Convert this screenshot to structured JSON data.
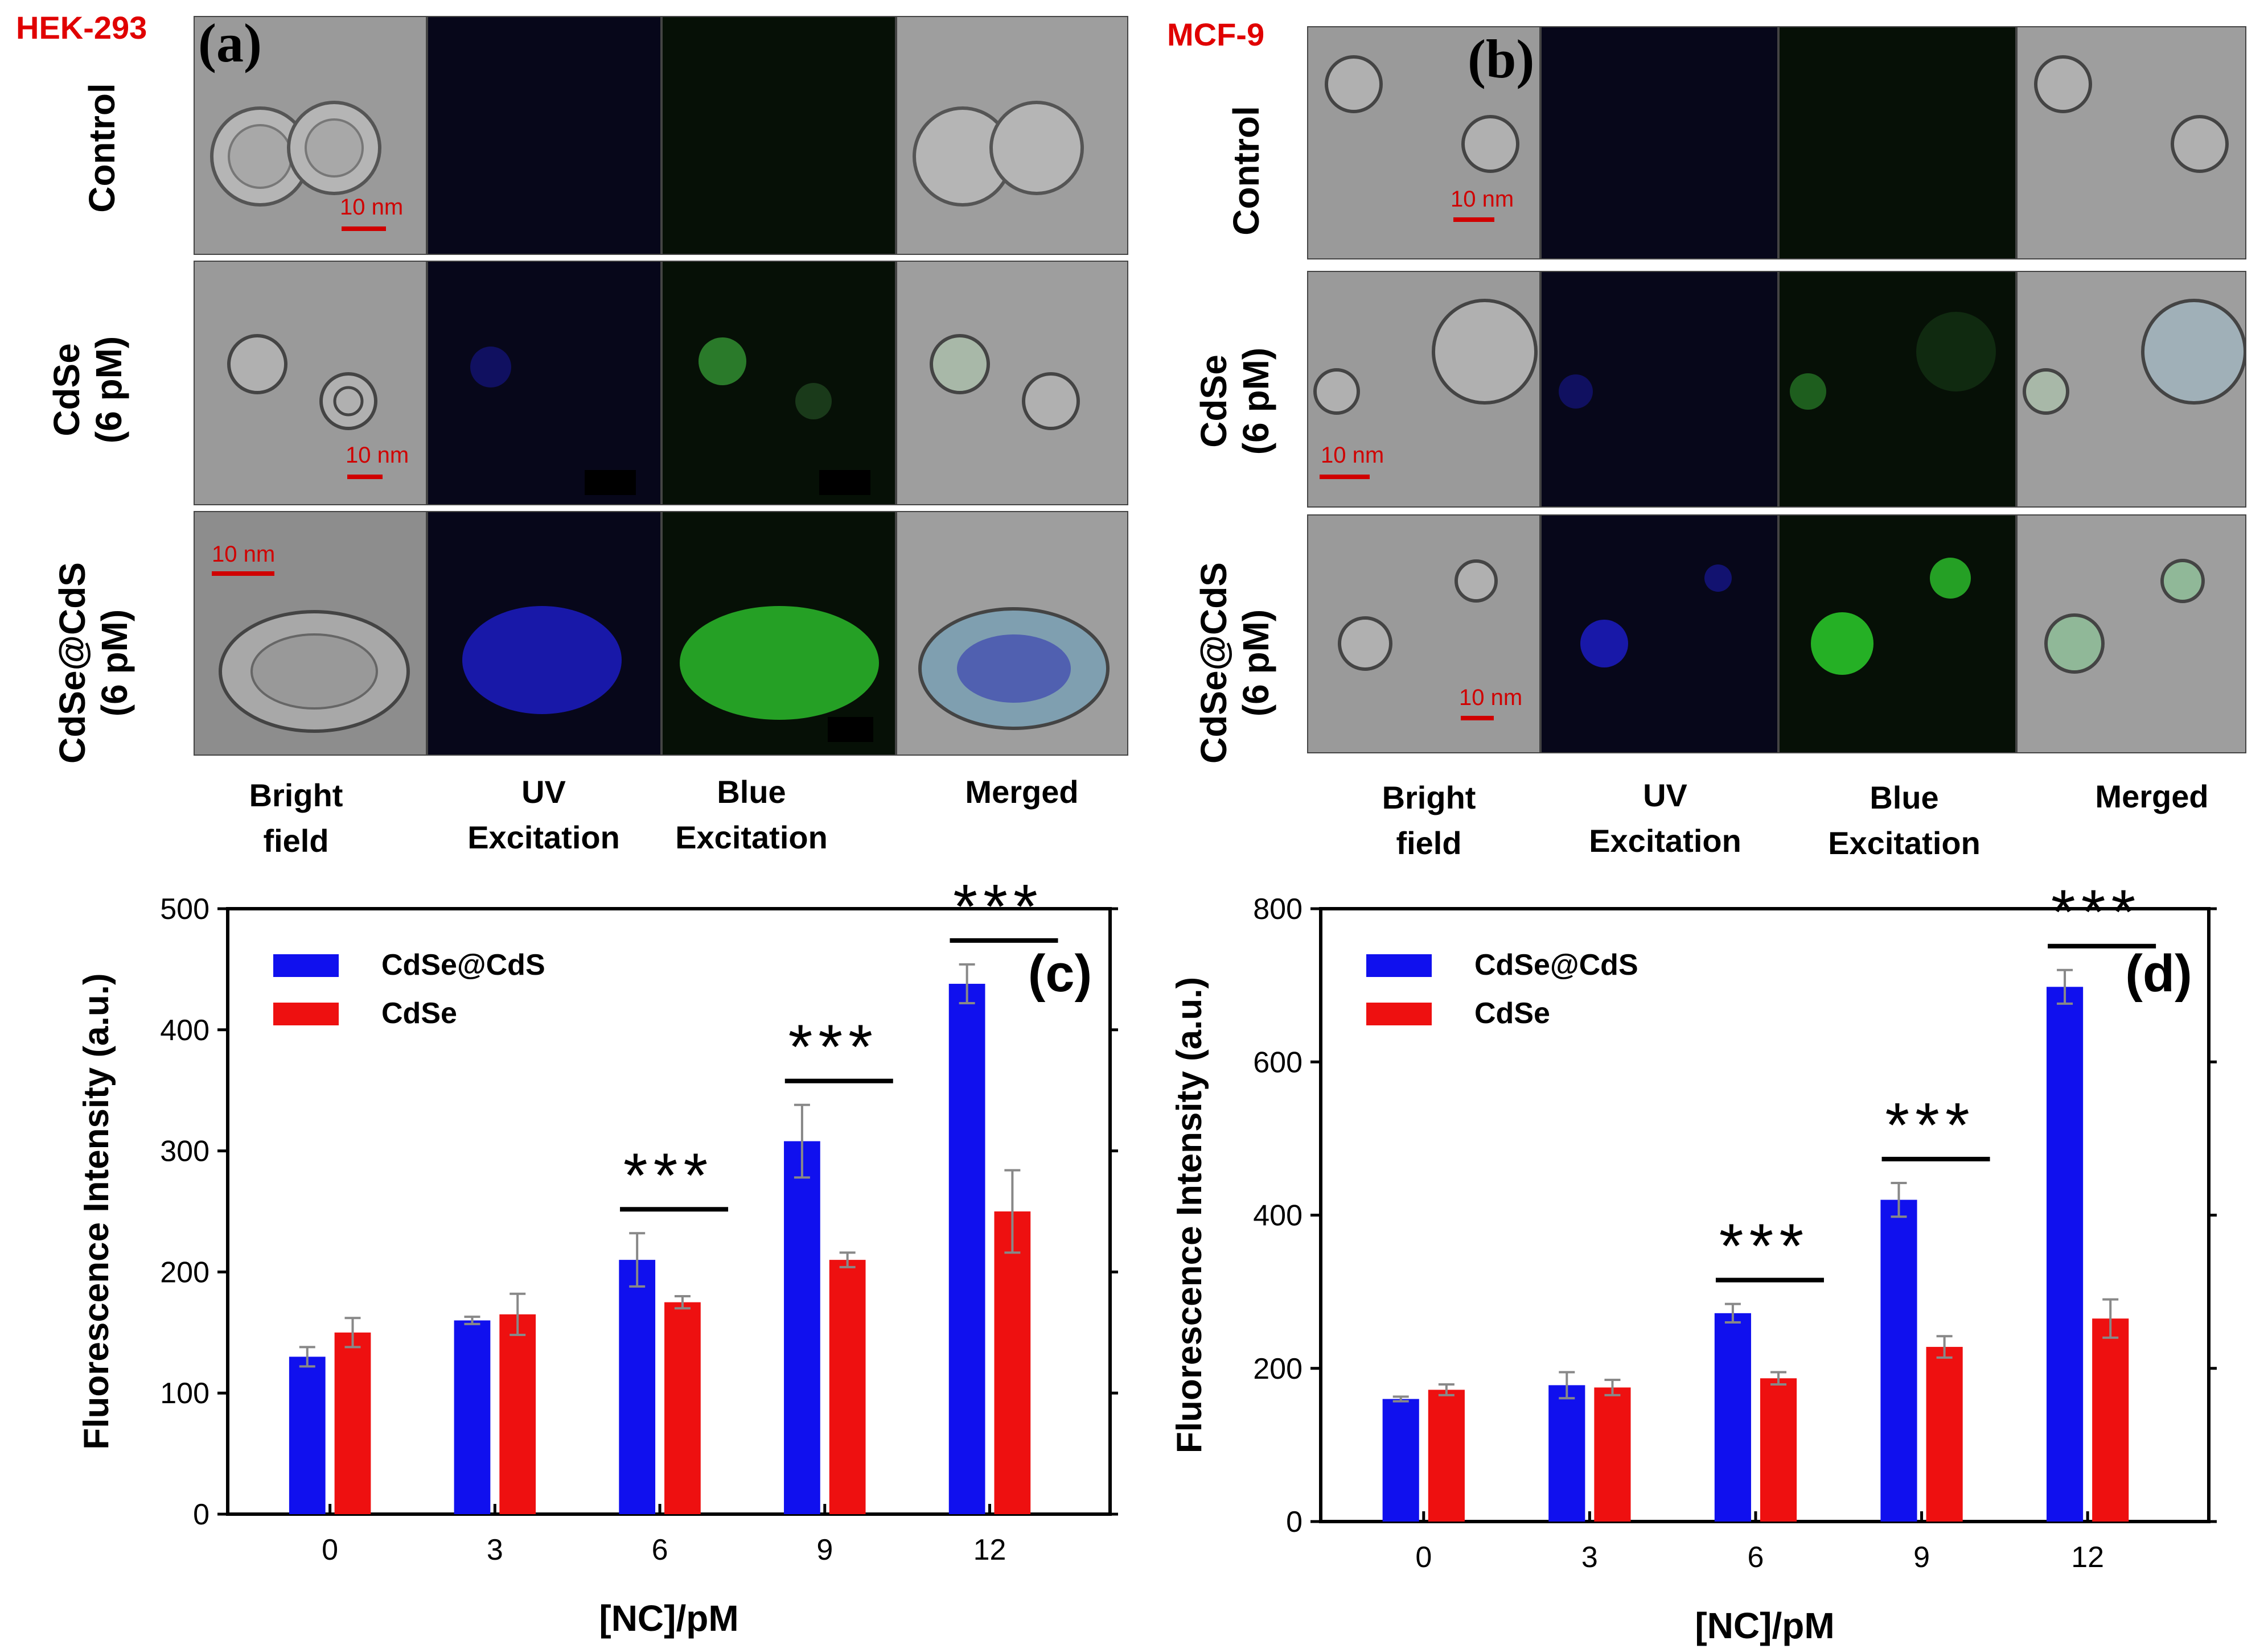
{
  "panel_a": {
    "cell_line": "HEK-293",
    "letter": "(a)",
    "rows": [
      {
        "label": "Control"
      },
      {
        "label": "CdSe\n(6 pM)"
      },
      {
        "label": "CdSe@CdS\n(6 pM)"
      }
    ],
    "columns": [
      "Bright\nfield",
      "UV\nExcitation",
      "Blue\nExcitation",
      "Merged"
    ],
    "scale_bar": "10 nm"
  },
  "panel_b": {
    "cell_line": "MCF-9",
    "letter": "(b)",
    "rows": [
      {
        "label": "Control"
      },
      {
        "label": "CdSe\n(6 pM)"
      },
      {
        "label": "CdSe@CdS\n(6 pM)"
      }
    ],
    "columns": [
      "Bright\nfield",
      "UV\nExcitation",
      "Blue\nExcitation",
      "Merged"
    ],
    "scale_bar": "10 nm"
  },
  "colors": {
    "cdse_cds": "#1010ee",
    "cdse": "#ee1010",
    "scale": "#d00000"
  },
  "chart_data": [
    {
      "id": "c",
      "letter": "(c)",
      "type": "bar",
      "xlabel": "[NC]/pM",
      "ylabel": "Fluorescence Intensity (a.u.)",
      "categories": [
        "0",
        "3",
        "6",
        "9",
        "12"
      ],
      "ylim": [
        0,
        500
      ],
      "yticks": [
        0,
        100,
        200,
        300,
        400,
        500
      ],
      "series": [
        {
          "name": "CdSe@CdS",
          "color": "#1010ee",
          "values": [
            130,
            160,
            210,
            308,
            438
          ],
          "errors": [
            8,
            3,
            22,
            30,
            16
          ]
        },
        {
          "name": "CdSe",
          "color": "#ee1010",
          "values": [
            150,
            165,
            175,
            210,
            250
          ],
          "errors": [
            12,
            17,
            5,
            6,
            34
          ]
        }
      ],
      "significance": [
        {
          "category": "6",
          "label": "***"
        },
        {
          "category": "9",
          "label": "***"
        },
        {
          "category": "12",
          "label": "***"
        }
      ],
      "legend": "top-left"
    },
    {
      "id": "d",
      "letter": "(d)",
      "type": "bar",
      "xlabel": "[NC]/pM",
      "ylabel": "Fluorescence Intensity (a.u.)",
      "categories": [
        "0",
        "3",
        "6",
        "9",
        "12"
      ],
      "ylim": [
        0,
        800
      ],
      "yticks": [
        0,
        200,
        400,
        600,
        800
      ],
      "series": [
        {
          "name": "CdSe@CdS",
          "color": "#1010ee",
          "values": [
            160,
            178,
            272,
            420,
            698
          ],
          "errors": [
            3,
            17,
            12,
            22,
            22
          ]
        },
        {
          "name": "CdSe",
          "color": "#ee1010",
          "values": [
            172,
            175,
            187,
            228,
            265
          ],
          "errors": [
            7,
            10,
            8,
            14,
            25
          ]
        }
      ],
      "significance": [
        {
          "category": "6",
          "label": "***"
        },
        {
          "category": "9",
          "label": "***"
        },
        {
          "category": "12",
          "label": "***"
        }
      ],
      "legend": "top-left"
    }
  ]
}
